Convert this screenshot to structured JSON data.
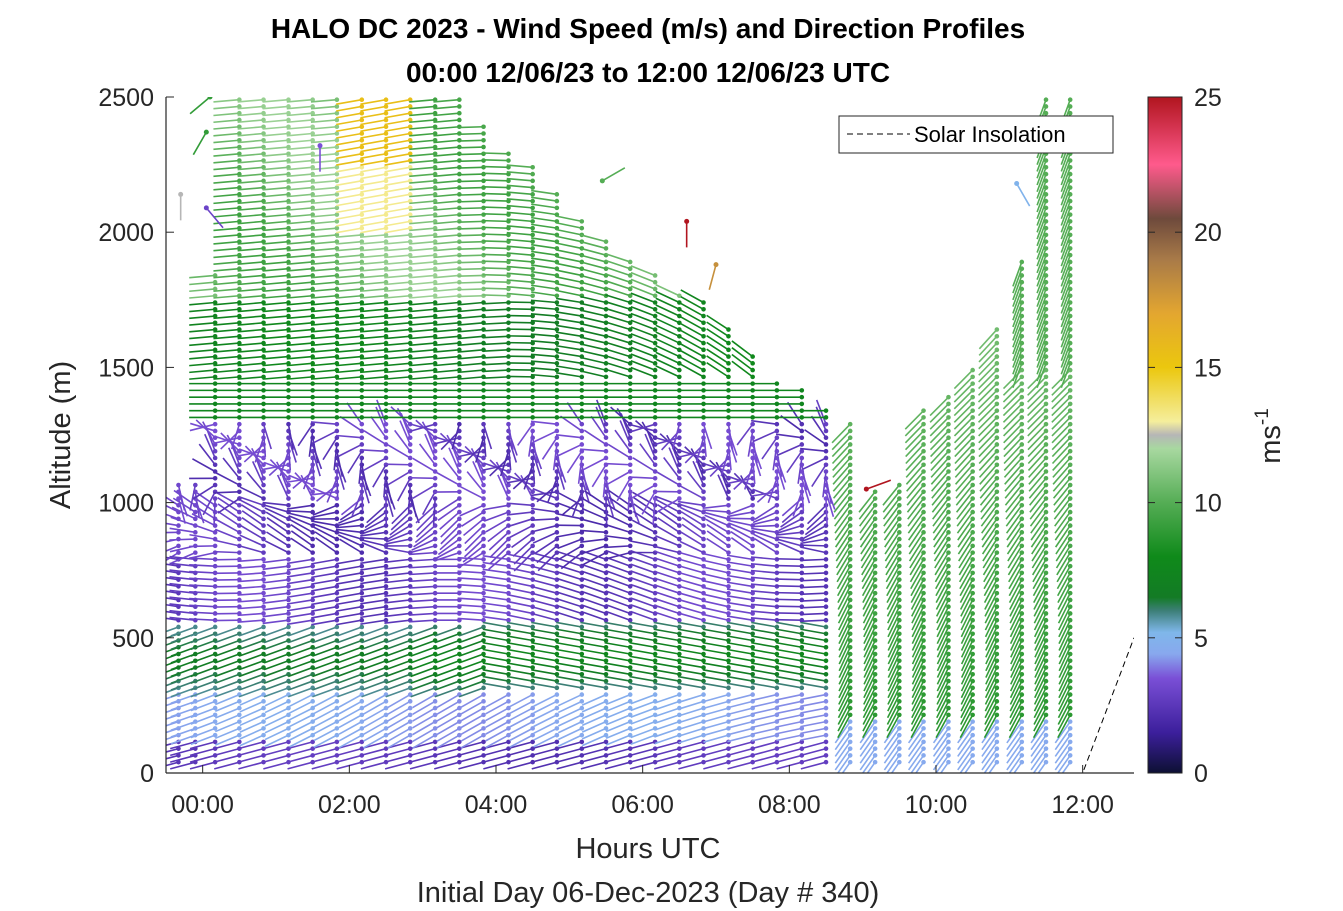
{
  "chart_data": {
    "type": "quiver",
    "title": "HALO DC 2023 - Wind Speed (m/s) and Direction Profiles",
    "subtitle": "00:00 12/06/23 to 12:00 12/06/23  UTC",
    "xlabel": "Hours UTC",
    "xlabel_secondary": "Initial Day 06-Dec-2023 (Day # 340)",
    "ylabel": "Altitude (m)",
    "xlim": [
      -0.5,
      12.7
    ],
    "ylim": [
      0,
      2500
    ],
    "x_ticks": [
      0,
      2,
      4,
      6,
      8,
      10,
      12
    ],
    "x_tick_labels": [
      "00:00",
      "02:00",
      "04:00",
      "06:00",
      "08:00",
      "10:00",
      "12:00"
    ],
    "y_ticks": [
      0,
      500,
      1000,
      1500,
      2000,
      2500
    ],
    "y_tick_labels": [
      "0",
      "500",
      "1000",
      "1500",
      "2000",
      "2500"
    ],
    "colorbar": {
      "label": "ms",
      "label_superscript": "-1",
      "range": [
        0,
        25
      ],
      "ticks": [
        0,
        5,
        10,
        15,
        20,
        25
      ],
      "tick_labels": [
        "0",
        "5",
        "10",
        "15",
        "20",
        "25"
      ],
      "colormap": [
        {
          "v": 0,
          "c": "#0d1033"
        },
        {
          "v": 1.5,
          "c": "#3c1f9c"
        },
        {
          "v": 3.5,
          "c": "#7a4fd6"
        },
        {
          "v": 4.4,
          "c": "#88a8ee"
        },
        {
          "v": 5.2,
          "c": "#7fb7ea"
        },
        {
          "v": 6,
          "c": "#3d7f78"
        },
        {
          "v": 6.5,
          "c": "#137b25"
        },
        {
          "v": 8,
          "c": "#0f8a1a"
        },
        {
          "v": 10,
          "c": "#55ad55"
        },
        {
          "v": 12,
          "c": "#a8d8a0"
        },
        {
          "v": 12.5,
          "c": "#b6b6b6"
        },
        {
          "v": 13,
          "c": "#f5ee9c"
        },
        {
          "v": 15,
          "c": "#ebc70e"
        },
        {
          "v": 17,
          "c": "#e3a630"
        },
        {
          "v": 19,
          "c": "#a87a48"
        },
        {
          "v": 20.5,
          "c": "#6e4a3c"
        },
        {
          "v": 22.5,
          "c": "#ff5a8c"
        },
        {
          "v": 25,
          "c": "#b1151f"
        }
      ]
    },
    "legend": {
      "label": "Solar Insolation",
      "position": "top-right",
      "style": "dashed"
    },
    "solar_insolation": {
      "x": [
        -0.5,
        12.0,
        12.7
      ],
      "y": [
        0,
        0,
        500
      ]
    },
    "series": [
      {
        "kind": "profiles",
        "x": [
          -0.33,
          -0.1,
          0.17,
          0.5,
          0.83,
          1.17,
          1.5,
          1.83,
          2.17,
          2.5,
          2.83,
          3.17,
          3.5,
          3.83,
          4.17,
          4.5,
          4.83,
          5.17,
          5.5,
          5.83,
          6.17,
          6.5,
          6.83,
          7.17,
          7.5,
          7.83,
          8.17,
          8.5,
          8.83,
          9.17,
          9.5,
          9.83,
          10.17,
          10.5,
          10.83,
          11.17,
          11.5,
          11.83
        ],
        "top_altitude": [
          1080,
          1080,
          1850,
          2500,
          2500,
          2500,
          2500,
          2500,
          2500,
          2500,
          2500,
          2500,
          2500,
          2400,
          2300,
          2250,
          2150,
          2050,
          1980,
          1900,
          1850,
          1780,
          1750,
          1650,
          1550,
          1450,
          1420,
          1350,
          1300,
          1050,
          1080,
          1350,
          1400,
          1500,
          1650,
          1900,
          2500,
          2500
        ],
        "altitude_step": 25,
        "bottom_altitude": 40
      }
    ],
    "isolated_vectors": [
      {
        "x": 0.1,
        "y": 2500,
        "speed": 9,
        "dir_deg": 220
      },
      {
        "x": 0.05,
        "y": 2370,
        "speed": 9,
        "dir_deg": 240
      },
      {
        "x": -0.3,
        "y": 2140,
        "speed": 12.5,
        "dir_deg": 270
      },
      {
        "x": 0.05,
        "y": 2090,
        "speed": 3,
        "dir_deg": 310
      },
      {
        "x": 1.6,
        "y": 2320,
        "speed": 3.5,
        "dir_deg": 270
      },
      {
        "x": 5.45,
        "y": 2190,
        "speed": 10,
        "dir_deg": 30
      },
      {
        "x": 6.6,
        "y": 2040,
        "speed": 25,
        "dir_deg": 270
      },
      {
        "x": 7.0,
        "y": 1880,
        "speed": 18,
        "dir_deg": 255
      },
      {
        "x": 9.05,
        "y": 1050,
        "speed": 25,
        "dir_deg": 20
      },
      {
        "x": 11.1,
        "y": 2180,
        "speed": 5,
        "dir_deg": 300
      }
    ]
  }
}
